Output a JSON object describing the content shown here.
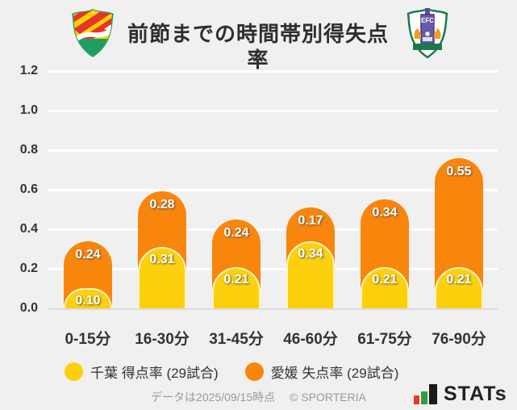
{
  "header": {
    "title": "前節までの時間帯別得失点率",
    "left_logo": "JEFユナイテッド千葉",
    "right_logo": "愛媛FC"
  },
  "chart_data": {
    "type": "bar",
    "stacked": true,
    "title": "前節までの時間帯別得失点率",
    "categories": [
      "0-15分",
      "16-30分",
      "31-45分",
      "46-60分",
      "61-75分",
      "76-90分"
    ],
    "series": [
      {
        "name": "千葉 得点率 (29試合)",
        "color": "#FCD00D",
        "values": [
          0.1,
          0.31,
          0.21,
          0.34,
          0.21,
          0.21
        ]
      },
      {
        "name": "愛媛 失点率 (29試合)",
        "color": "#F8860D",
        "values": [
          0.24,
          0.28,
          0.24,
          0.17,
          0.34,
          0.55
        ]
      }
    ],
    "ylim": [
      0,
      1.2
    ],
    "yticks": [
      0.0,
      0.2,
      0.4,
      0.6,
      0.8,
      1.0,
      1.2
    ],
    "grid": true,
    "legend_position": "bottom"
  },
  "legend": {
    "items": [
      {
        "label": "千葉 得点率 (29試合)",
        "color": "#FCD00D"
      },
      {
        "label": "愛媛 失点率 (29試合)",
        "color": "#F8860D"
      }
    ]
  },
  "footer": {
    "note": "データは2025/09/15時点",
    "copyright": "© SPORTERIA",
    "brand": "STATs",
    "brand_colors": {
      "red": "#E8392F",
      "green": "#2F9E41",
      "black": "#1A1A1A"
    }
  }
}
